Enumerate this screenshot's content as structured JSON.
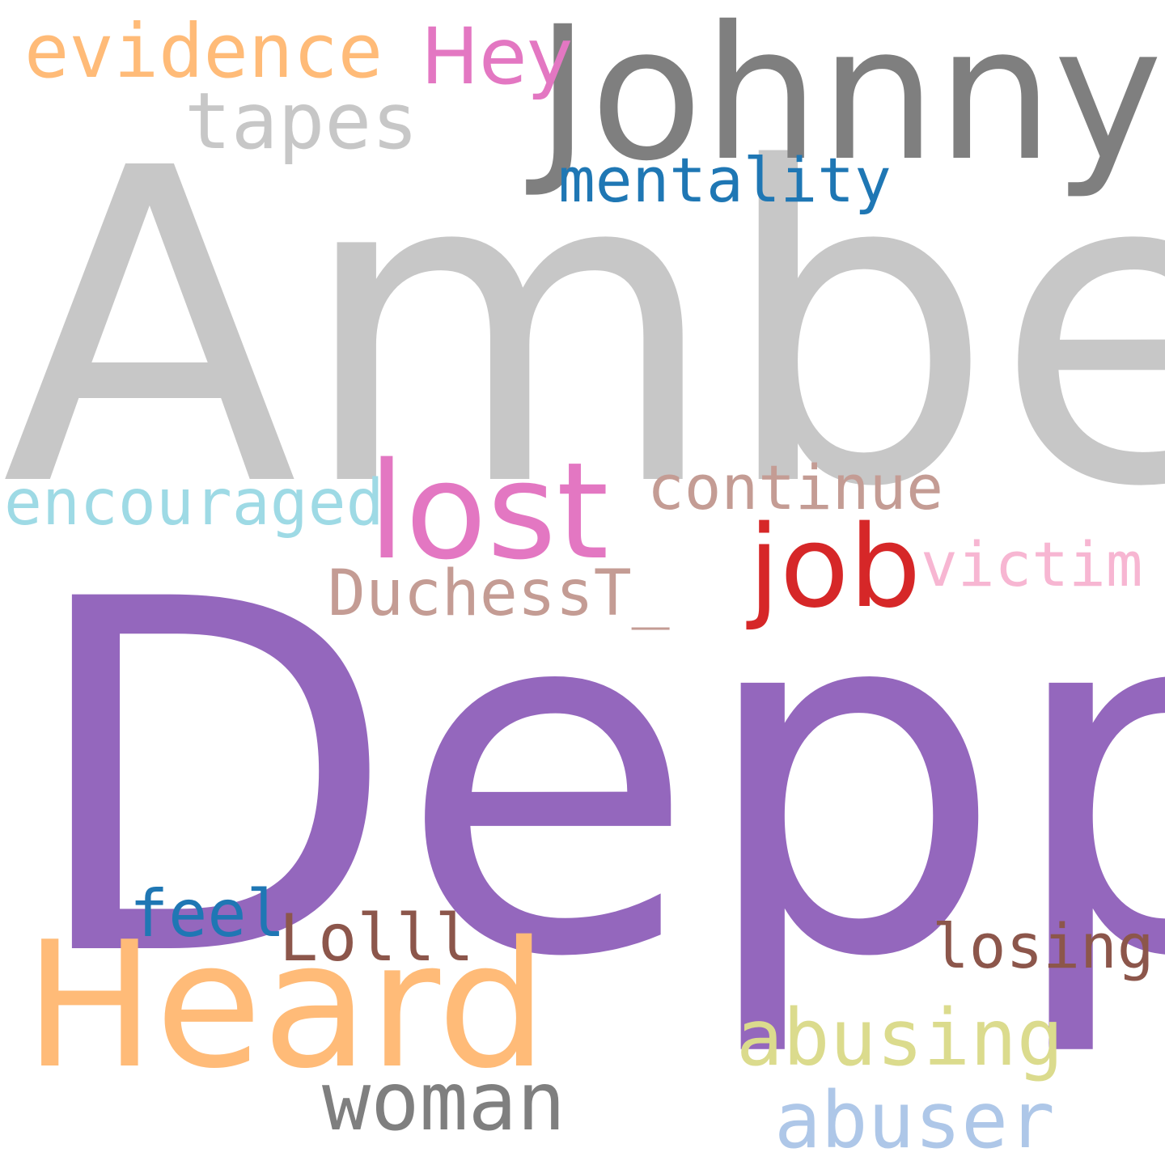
{
  "wordcloud": {
    "background": "#ffffff",
    "words": [
      {
        "id": "amber",
        "text": "Amber",
        "color": "#c7c7c7"
      },
      {
        "id": "depp",
        "text": "Depp",
        "color": "#9467bd"
      },
      {
        "id": "johnny",
        "text": "Johnny",
        "color": "#7f7f7f"
      },
      {
        "id": "heard",
        "text": "Heard",
        "color": "#ffbb78"
      },
      {
        "id": "lost",
        "text": "lost",
        "color": "#e377c2"
      },
      {
        "id": "job",
        "text": "job",
        "color": "#d62728"
      },
      {
        "id": "evidence",
        "text": "evidence",
        "color": "#ffbb78"
      },
      {
        "id": "hey",
        "text": "Hey",
        "color": "#e377c2"
      },
      {
        "id": "tapes",
        "text": "tapes",
        "color": "#c7c7c7"
      },
      {
        "id": "mentality",
        "text": "mentality",
        "color": "#1f77b4"
      },
      {
        "id": "continue",
        "text": "continue",
        "color": "#c49c94"
      },
      {
        "id": "encouraged",
        "text": "encouraged",
        "color": "#9edae5"
      },
      {
        "id": "victim",
        "text": "victim",
        "color": "#f7b6d2"
      },
      {
        "id": "duchess",
        "text": "DuchessT_",
        "color": "#c49c94"
      },
      {
        "id": "feel",
        "text": "feel",
        "color": "#1f77b4"
      },
      {
        "id": "lolll",
        "text": "Lolll",
        "color": "#8c564b"
      },
      {
        "id": "losing",
        "text": "losing",
        "color": "#8c564b"
      },
      {
        "id": "abusing",
        "text": "abusing",
        "color": "#dbdb8d"
      },
      {
        "id": "woman",
        "text": "woman",
        "color": "#7f7f7f"
      },
      {
        "id": "abuser",
        "text": "abuser",
        "color": "#aec7e8"
      }
    ]
  }
}
